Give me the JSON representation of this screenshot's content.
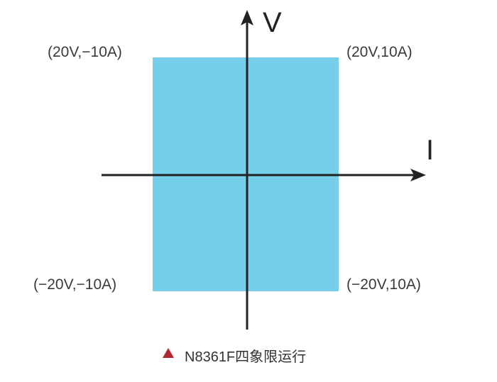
{
  "axes": {
    "vertical": "V",
    "horizontal": "I"
  },
  "corners": {
    "top_left": "(20V,−10A)",
    "top_right": "(20V,10A)",
    "bottom_left": "(−20V,−10A)",
    "bottom_right": "(−20V,10A)"
  },
  "caption": "N8361F四象限运行",
  "colors": {
    "region": "#75cfea",
    "caption_marker": "#b5262e",
    "axis": "#222222"
  }
}
